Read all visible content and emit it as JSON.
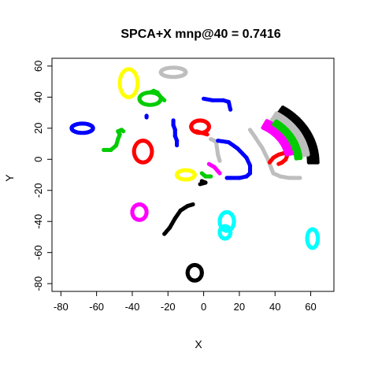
{
  "chart_data": {
    "type": "scatter",
    "title": "SPCA+X mnp@40 = 0.7416",
    "xlabel": "X",
    "ylabel": "Y",
    "xlim": [
      -85,
      73
    ],
    "ylim": [
      -85,
      65
    ],
    "xticks": [
      "-80",
      "-60",
      "-40",
      "-20",
      "0",
      "20",
      "40",
      "60"
    ],
    "yticks": [
      "-80",
      "-60",
      "-40",
      "-20",
      "0",
      "20",
      "40",
      "60"
    ],
    "grid": false,
    "legend": "none",
    "clusters": [
      {
        "color": "#0000ff",
        "shape": "ring",
        "cx": -68,
        "cy": 20,
        "rx": 6,
        "ry": 3
      },
      {
        "color": "#00cc00",
        "shape": "path",
        "points": [
          [
            -56,
            6
          ],
          [
            -52,
            6
          ],
          [
            -49,
            9
          ],
          [
            -48,
            13
          ],
          [
            -47,
            16
          ],
          [
            -48,
            18
          ],
          [
            -46,
            19
          ],
          [
            -45,
            18
          ]
        ]
      },
      {
        "color": "#ffff00",
        "shape": "ring",
        "cx": -42,
        "cy": 49,
        "rx": 5,
        "ry": 9
      },
      {
        "color": "#ff0000",
        "shape": "ring",
        "cx": -34,
        "cy": 5,
        "rx": 5,
        "ry": 7
      },
      {
        "color": "#00cc00",
        "shape": "ring",
        "cx": -30,
        "cy": 39,
        "rx": 6,
        "ry": 4
      },
      {
        "color": "#00cc00",
        "shape": "path",
        "points": [
          [
            -30,
            43
          ],
          [
            -28,
            44
          ],
          [
            -26,
            43
          ],
          [
            -24,
            40
          ],
          [
            -22,
            38
          ]
        ]
      },
      {
        "color": "#0000ff",
        "shape": "path",
        "points": [
          [
            -32,
            28
          ],
          [
            -32,
            27
          ]
        ]
      },
      {
        "color": "#bebebe",
        "shape": "ring",
        "cx": -17,
        "cy": 56,
        "rx": 7,
        "ry": 3
      },
      {
        "color": "#0000ff",
        "shape": "path",
        "points": [
          [
            -17,
            25
          ],
          [
            -17,
            22
          ],
          [
            -16,
            19
          ],
          [
            -16,
            15
          ],
          [
            -15,
            12
          ],
          [
            -15,
            9
          ]
        ]
      },
      {
        "color": "#0000ff",
        "shape": "path",
        "points": [
          [
            0,
            39
          ],
          [
            5,
            38
          ],
          [
            11,
            38
          ],
          [
            14,
            37
          ],
          [
            15,
            32
          ]
        ]
      },
      {
        "color": "#ff0000",
        "shape": "ring",
        "cx": -2,
        "cy": 21,
        "rx": 5,
        "ry": 4
      },
      {
        "color": "#ff0000",
        "shape": "path",
        "points": [
          [
            -4,
            18
          ],
          [
            -1,
            17
          ],
          [
            2,
            16
          ]
        ]
      },
      {
        "color": "#ffff00",
        "shape": "ring",
        "cx": -10,
        "cy": -10,
        "rx": 5,
        "ry": 3
      },
      {
        "color": "#bebebe",
        "shape": "path",
        "points": [
          [
            4,
            13
          ],
          [
            6,
            12
          ],
          [
            7,
            11
          ],
          [
            8,
            3
          ],
          [
            9,
            -1
          ]
        ]
      },
      {
        "color": "#00cc00",
        "shape": "path",
        "points": [
          [
            -1,
            -9
          ],
          [
            1,
            -11
          ],
          [
            4,
            -11
          ]
        ]
      },
      {
        "color": "#000000",
        "shape": "path",
        "points": [
          [
            -1,
            -14
          ],
          [
            1,
            -15
          ],
          [
            -2,
            -16
          ]
        ]
      },
      {
        "color": "#ff00ff",
        "shape": "path",
        "points": [
          [
            3,
            -3
          ],
          [
            6,
            -5
          ],
          [
            9,
            -9
          ]
        ]
      },
      {
        "color": "#0000ff",
        "shape": "path",
        "points": [
          [
            8,
            12
          ],
          [
            14,
            11
          ],
          [
            19,
            7
          ],
          [
            24,
            1
          ],
          [
            26,
            -4
          ],
          [
            26,
            -9
          ],
          [
            24,
            -11
          ],
          [
            20,
            -12
          ],
          [
            15,
            -12
          ],
          [
            13,
            -12
          ]
        ]
      },
      {
        "color": "#bebebe",
        "shape": "path",
        "points": [
          [
            26,
            19
          ],
          [
            29,
            14
          ],
          [
            33,
            7
          ],
          [
            36,
            0
          ],
          [
            38,
            -6
          ],
          [
            39,
            -9
          ],
          [
            43,
            -11
          ],
          [
            48,
            -12
          ],
          [
            54,
            -12
          ]
        ]
      },
      {
        "color": "#ff0000",
        "shape": "path",
        "points": [
          [
            37,
            -2
          ],
          [
            39,
            1
          ],
          [
            42,
            3
          ],
          [
            45,
            4
          ],
          [
            47,
            3
          ],
          [
            46,
            0
          ],
          [
            44,
            -2
          ],
          [
            42,
            -3
          ]
        ]
      },
      {
        "color": "#ff00ff",
        "shape": "ring",
        "cx": -36,
        "cy": -34,
        "rx": 4,
        "ry": 5
      },
      {
        "color": "#000000",
        "shape": "path",
        "points": [
          [
            -22,
            -48
          ],
          [
            -19,
            -44
          ],
          [
            -16,
            -38
          ],
          [
            -13,
            -33
          ],
          [
            -9,
            -30
          ],
          [
            -6,
            -29
          ]
        ]
      },
      {
        "color": "#00ffff",
        "shape": "ring",
        "cx": 13,
        "cy": -40,
        "rx": 4,
        "ry": 6
      },
      {
        "color": "#00ffff",
        "shape": "ring",
        "cx": 12,
        "cy": -47,
        "rx": 3,
        "ry": 4
      },
      {
        "color": "#00ffff",
        "shape": "ring",
        "cx": 61,
        "cy": -51,
        "rx": 3,
        "ry": 6
      },
      {
        "color": "#000000",
        "shape": "ring",
        "cx": -5,
        "cy": -73,
        "rx": 4,
        "ry": 5
      }
    ],
    "arcs": [
      {
        "color": "#000000",
        "cx": 22,
        "cy": -2,
        "r0": 37,
        "r1": 43,
        "a0": 0,
        "a1": 58
      },
      {
        "color": "#bebebe",
        "cx": 22,
        "cy": -2,
        "r0": 32,
        "r1": 37,
        "a0": 8,
        "a1": 60
      },
      {
        "color": "#ff00ff",
        "cx": 22,
        "cy": -2,
        "r0": 25,
        "r1": 30,
        "a0": 12,
        "a1": 64
      },
      {
        "color": "#00cc00",
        "cx": 22,
        "cy": -2,
        "r0": 30,
        "r1": 33,
        "a0": 5,
        "a1": 55
      }
    ]
  }
}
